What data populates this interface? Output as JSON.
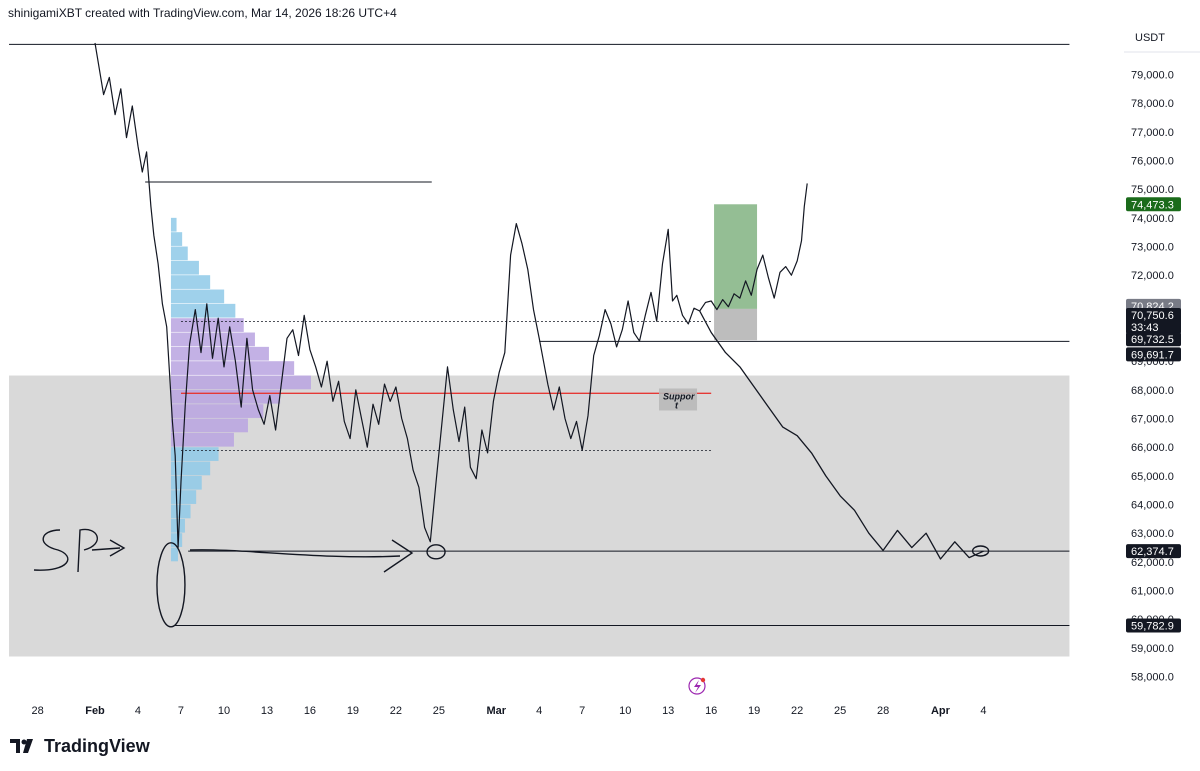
{
  "header": {
    "attribution": "shinigamiXBT created with TradingView.com, Mar 14, 2026 18:26 UTC+4"
  },
  "brand": {
    "name": "TradingView"
  },
  "colors": {
    "zone_gray": "#d9d9d9",
    "volume_blue": "#8ec9e8",
    "volume_purple": "#b9a3e0",
    "poc_red": "#e53935",
    "target_green": "#5b9b5b",
    "stop_gray": "#9a9a9a",
    "badge_green": "#1b6b1b",
    "badge_dark": "#131722",
    "badge_gray": "#787b86"
  },
  "chart_data": {
    "type": "line",
    "title": "",
    "currency": "USDT",
    "ylim": [
      57300,
      80500
    ],
    "y_ticks": [
      58000,
      59000,
      60000,
      61000,
      62000,
      63000,
      64000,
      65000,
      66000,
      67000,
      68000,
      69000,
      70000,
      71000,
      72000,
      73000,
      74000,
      75000,
      76000,
      77000,
      78000,
      79000
    ],
    "y_tick_labels": [
      "58,000.0",
      "59,000.0",
      "60,000.0",
      "61,000.0",
      "62,000.0",
      "63,000.0",
      "64,000.0",
      "65,000.0",
      "66,000.0",
      "67,000.0",
      "68,000.0",
      "69,000.0",
      "70,000.0",
      "71,000.0",
      "72,000.0",
      "73,000.0",
      "74,000.0",
      "75,000.0",
      "76,000.0",
      "77,000.0",
      "78,000.0",
      "79,000.0"
    ],
    "x_ticks": [
      {
        "day": -4,
        "label": "28",
        "bold": false
      },
      {
        "day": 0,
        "label": "Feb",
        "bold": true
      },
      {
        "day": 3,
        "label": "4",
        "bold": false
      },
      {
        "day": 6,
        "label": "7",
        "bold": false
      },
      {
        "day": 9,
        "label": "10",
        "bold": false
      },
      {
        "day": 12,
        "label": "13",
        "bold": false
      },
      {
        "day": 15,
        "label": "16",
        "bold": false
      },
      {
        "day": 18,
        "label": "19",
        "bold": false
      },
      {
        "day": 21,
        "label": "22",
        "bold": false
      },
      {
        "day": 24,
        "label": "25",
        "bold": false
      },
      {
        "day": 28,
        "label": "Mar",
        "bold": true
      },
      {
        "day": 31,
        "label": "4",
        "bold": false
      },
      {
        "day": 34,
        "label": "7",
        "bold": false
      },
      {
        "day": 37,
        "label": "10",
        "bold": false
      },
      {
        "day": 40,
        "label": "13",
        "bold": false
      },
      {
        "day": 43,
        "label": "16",
        "bold": false
      },
      {
        "day": 46,
        "label": "19",
        "bold": false
      },
      {
        "day": 49,
        "label": "22",
        "bold": false
      },
      {
        "day": 52,
        "label": "25",
        "bold": false
      },
      {
        "day": 55,
        "label": "28",
        "bold": false
      },
      {
        "day": 59,
        "label": "Apr",
        "bold": true
      },
      {
        "day": 62,
        "label": "4",
        "bold": false
      }
    ],
    "price_series": {
      "name": "BTCUSDT",
      "x": [
        0,
        0.3,
        0.6,
        1.0,
        1.4,
        1.8,
        2.2,
        2.6,
        3.0,
        3.3,
        3.6,
        3.9,
        4.1,
        4.4,
        4.7,
        5.0,
        5.2,
        5.4,
        5.6,
        5.8,
        6.0,
        6.3,
        6.6,
        7.0,
        7.4,
        7.8,
        8.2,
        8.6,
        9.0,
        9.4,
        9.8,
        10.2,
        10.6,
        11.0,
        11.4,
        11.8,
        12.2,
        12.6,
        13.0,
        13.4,
        13.8,
        14.2,
        14.6,
        15.0,
        15.4,
        15.8,
        16.2,
        16.6,
        17.0,
        17.4,
        17.8,
        18.2,
        18.6,
        19.0,
        19.4,
        19.8,
        20.2,
        20.6,
        21.0,
        21.4,
        21.8,
        22.2,
        22.6,
        23.0,
        23.4,
        23.8,
        24.2,
        24.6,
        25.0,
        25.4,
        25.8,
        26.2,
        26.6,
        27.0,
        27.4,
        27.8,
        28.2,
        28.6,
        29.0,
        29.4,
        29.8,
        30.2,
        30.6,
        31.0,
        31.3,
        31.6,
        32.0,
        32.4,
        32.8,
        33.2,
        33.6,
        34.0,
        34.4,
        34.8,
        35.2,
        35.6,
        36.0,
        36.4,
        36.8,
        37.2,
        37.6,
        38.0,
        38.4,
        38.8,
        39.2,
        39.6,
        40.0,
        40.3,
        40.6,
        41.0,
        41.4,
        41.8,
        42.2
      ],
      "y": [
        80100,
        79200,
        78300,
        78900,
        77600,
        78500,
        76800,
        77900,
        76500,
        75600,
        76300,
        74400,
        73400,
        72400,
        71000,
        70200,
        68600,
        66900,
        65700,
        62500,
        64800,
        67500,
        69600,
        70800,
        69300,
        71000,
        69100,
        70500,
        68800,
        70200,
        69000,
        67400,
        69800,
        68000,
        67300,
        66800,
        67800,
        66600,
        68200,
        69800,
        70100,
        69200,
        70600,
        69400,
        68800,
        68100,
        69000,
        67600,
        68300,
        66900,
        66300,
        68000,
        67000,
        66000,
        67500,
        66800,
        68200,
        67600,
        68100,
        67000,
        66300,
        65200,
        64600,
        63200,
        62700,
        64800,
        66800,
        68800,
        67300,
        66200,
        67400,
        65300,
        64900,
        66600,
        65800,
        67600,
        68600,
        69300,
        72700,
        73800,
        73100,
        72200,
        70800,
        69800,
        69000,
        68200,
        67300,
        68100,
        67000,
        66300,
        66900,
        65900,
        67100,
        69200,
        69900,
        70800,
        70300,
        69500,
        70100,
        71100,
        70000,
        69700,
        70600,
        71400,
        70400,
        72400,
        73600,
        71100,
        71300,
        70600,
        70300,
        70850,
        70750
      ]
    },
    "projection_path": {
      "name": "projection",
      "x": [
        42.2,
        43.0,
        44.0,
        45.0,
        46.0,
        47.0,
        48.0,
        49.0,
        50.0,
        51.0,
        52.0,
        53.0,
        54.0,
        55.0,
        56.0,
        57.0,
        58.0,
        59.0,
        60.0,
        61.0,
        62.0
      ],
      "y": [
        70750,
        70000,
        69300,
        68800,
        68100,
        67400,
        66700,
        66400,
        65800,
        65000,
        64300,
        63800,
        63000,
        62400,
        63100,
        62500,
        63000,
        62100,
        62700,
        62150,
        62374
      ]
    },
    "bull_scenario_path": {
      "x": [
        42.2,
        42.6,
        43.0,
        43.4,
        43.8,
        44.2,
        44.6,
        45.0,
        45.4,
        45.8,
        46.2,
        46.6,
        47.0,
        47.4,
        47.8,
        48.2,
        48.6,
        49.0,
        49.3,
        49.5,
        49.7
      ],
      "y": [
        70750,
        71050,
        71100,
        70800,
        71150,
        70900,
        71350,
        71200,
        71800,
        71300,
        72200,
        72700,
        71900,
        71200,
        72100,
        72300,
        72000,
        72500,
        73200,
        74400,
        75200
      ]
    },
    "volume_profile": {
      "name": "Visible range volume profile",
      "price_bins": [
        62000,
        62500,
        63000,
        63500,
        64000,
        64500,
        65000,
        65500,
        66000,
        66500,
        67000,
        67500,
        68000,
        68500,
        69000,
        69500,
        70000,
        70500,
        71000,
        71500,
        72000,
        72500,
        73000,
        73500
      ],
      "volume": [
        0.05,
        0.08,
        0.1,
        0.14,
        0.18,
        0.22,
        0.28,
        0.34,
        0.45,
        0.55,
        0.66,
        0.78,
        1.0,
        0.88,
        0.7,
        0.6,
        0.52,
        0.46,
        0.38,
        0.28,
        0.2,
        0.12,
        0.08,
        0.04
      ]
    },
    "horizontal_levels": [
      {
        "name": "top-line",
        "price": 80050,
        "x_from": -6,
        "x_to": 68
      },
      {
        "name": "resistance-line",
        "price": 75250,
        "x_from": 3.5,
        "x_to": 23.5
      },
      {
        "name": "value-area-high",
        "price": 70380,
        "x_from": 6,
        "x_to": 43,
        "dotted": true
      },
      {
        "name": "poc-red-line",
        "price": 67880,
        "x_from": 6,
        "x_to": 43,
        "red": true
      },
      {
        "name": "value-area-low",
        "price": 65880,
        "x_from": 6,
        "x_to": 43,
        "dotted": true
      },
      {
        "name": "level-69691",
        "price": 69691.7,
        "x_from": 31,
        "x_to": 68
      },
      {
        "name": "level-62374",
        "price": 62374.7,
        "x_from": 6.5,
        "x_to": 68
      },
      {
        "name": "level-59782",
        "price": 59782.9,
        "x_from": 5.5,
        "x_to": 68
      }
    ],
    "zones": [
      {
        "name": "demand-zone",
        "price_from": 58700,
        "price_to": 68500,
        "x_from": -6,
        "x_to": 68
      }
    ],
    "position_tool": {
      "entry": 70824.2,
      "target": 74473.3,
      "stop": 69732.5,
      "x_from": 43.2,
      "x_to": 46.2
    },
    "annotations": {
      "support_label": "Suppor\nt",
      "sp_text": "SP",
      "support_label_price": 67700,
      "support_label_x": 39.5
    },
    "price_badges": [
      {
        "price": 74473.3,
        "label": "74,473.3",
        "style": "green"
      },
      {
        "price": 70824.2,
        "label": "70,824.2",
        "style": "gray"
      },
      {
        "price": 70750.6,
        "label": "70,750.6",
        "sub": "33:43",
        "style": "dark"
      },
      {
        "price": 69732.5,
        "label": "69,732.5",
        "style": "dark"
      },
      {
        "price": 69691.7,
        "label": "69,691.7",
        "style": "dark"
      },
      {
        "price": 62374.7,
        "label": "62,374.7",
        "style": "dark"
      },
      {
        "price": 59782.9,
        "label": "59,782.9",
        "style": "dark"
      }
    ]
  }
}
